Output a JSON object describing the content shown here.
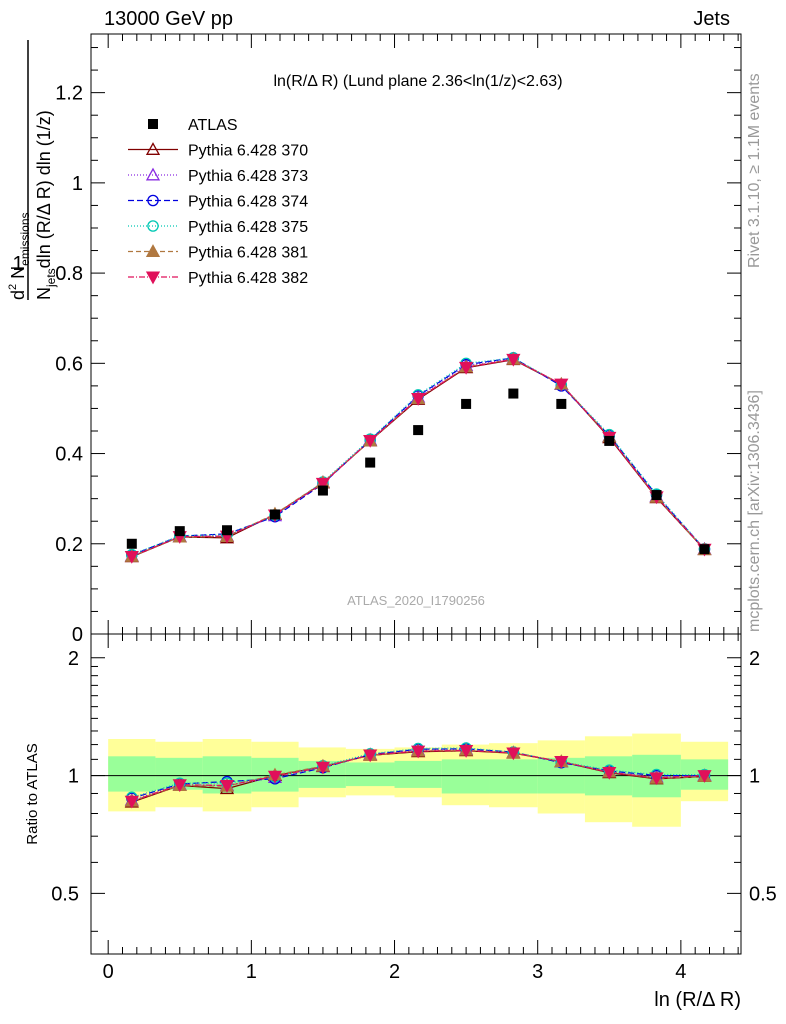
{
  "header": {
    "left": "13000 GeV pp",
    "right": "Jets"
  },
  "side_labels": {
    "rivet": "Rivet 3.1.10, ≥ 1.1M events",
    "mcplots": "mcplots.cern.ch [arXiv:1306.3436]"
  },
  "watermark": "ATLAS_2020_I1790256",
  "chart_data": {
    "type": "scatter",
    "title": "ln(R/Δ R) (Lund plane 2.36<ln(1/z)<2.63)",
    "xlabel": "ln (R/Δ R)",
    "ylabel": "1/N_jets d²N_emissions / dln(R/Δ R) dln(1/z)",
    "ratio_ylabel": "Ratio to ATLAS",
    "xlim": [
      -0.12,
      4.42
    ],
    "ylim": [
      0,
      1.33
    ],
    "ratio_ylim": [
      0.35,
      2.3
    ],
    "ratio_log": true,
    "xticks": [
      0,
      1,
      2,
      3,
      4
    ],
    "yticks": [
      0,
      0.2,
      0.4,
      0.6,
      0.8,
      1,
      1.2
    ],
    "ytick_labels": [
      "0",
      "0.2",
      "0.4",
      "0.6",
      "0.8",
      "1",
      "1.2"
    ],
    "ratio_yticks": [
      0.5,
      1,
      2
    ],
    "ratio_ytick_labels": [
      "0.5",
      "1",
      "2"
    ],
    "legend_position": "top-left",
    "x": [
      0.165,
      0.5,
      0.83,
      1.165,
      1.5,
      1.83,
      2.165,
      2.5,
      2.83,
      3.165,
      3.5,
      3.83,
      4.165
    ],
    "bin_edges": [
      0,
      0.33,
      0.66,
      1.0,
      1.33,
      1.66,
      2.0,
      2.33,
      2.66,
      3.0,
      3.33,
      3.66,
      4.0,
      4.33
    ],
    "data": {
      "name": "ATLAS",
      "values": [
        0.2,
        0.228,
        0.23,
        0.265,
        0.318,
        0.38,
        0.452,
        0.51,
        0.533,
        0.51,
        0.428,
        0.308,
        0.188
      ],
      "band_green": [
        [
          0.91,
          1.12
        ],
        [
          0.92,
          1.11
        ],
        [
          0.9,
          1.12
        ],
        [
          0.91,
          1.11
        ],
        [
          0.93,
          1.09
        ],
        [
          0.94,
          1.08
        ],
        [
          0.93,
          1.09
        ],
        [
          0.9,
          1.1
        ],
        [
          0.9,
          1.1
        ],
        [
          0.9,
          1.11
        ],
        [
          0.89,
          1.12
        ],
        [
          0.88,
          1.13
        ],
        [
          0.92,
          1.1
        ]
      ],
      "band_yellow": [
        [
          0.81,
          1.24
        ],
        [
          0.83,
          1.22
        ],
        [
          0.81,
          1.24
        ],
        [
          0.83,
          1.22
        ],
        [
          0.88,
          1.18
        ],
        [
          0.89,
          1.17
        ],
        [
          0.88,
          1.18
        ],
        [
          0.84,
          1.2
        ],
        [
          0.83,
          1.21
        ],
        [
          0.8,
          1.23
        ],
        [
          0.76,
          1.26
        ],
        [
          0.74,
          1.28
        ],
        [
          0.86,
          1.22
        ]
      ]
    },
    "series": [
      {
        "name": "Pythia 6.428 370",
        "color": "#800000",
        "marker": "triangle-open",
        "dash": "",
        "values": [
          0.171,
          0.215,
          0.213,
          0.265,
          0.335,
          0.428,
          0.52,
          0.59,
          0.608,
          0.553,
          0.435,
          0.302,
          0.187
        ]
      },
      {
        "name": "Pythia 6.428 373",
        "color": "#8a2be2",
        "marker": "triangle-open",
        "dash": "1,2",
        "values": [
          0.173,
          0.216,
          0.217,
          0.262,
          0.336,
          0.43,
          0.525,
          0.595,
          0.61,
          0.553,
          0.438,
          0.305,
          0.188
        ]
      },
      {
        "name": "Pythia 6.428 374",
        "color": "#0000e0",
        "marker": "circle-open",
        "dash": "6,3",
        "values": [
          0.175,
          0.217,
          0.222,
          0.26,
          0.333,
          0.43,
          0.528,
          0.597,
          0.612,
          0.55,
          0.44,
          0.308,
          0.188
        ]
      },
      {
        "name": "Pythia 6.428 375",
        "color": "#00c8b4",
        "marker": "circle-open",
        "dash": "1,2",
        "values": [
          0.176,
          0.218,
          0.22,
          0.263,
          0.337,
          0.432,
          0.53,
          0.6,
          0.612,
          0.553,
          0.442,
          0.31,
          0.189
        ]
      },
      {
        "name": "Pythia 6.428 381",
        "color": "#b07840",
        "marker": "triangle-filled",
        "dash": "5,3",
        "values": [
          0.172,
          0.215,
          0.216,
          0.266,
          0.336,
          0.428,
          0.522,
          0.592,
          0.609,
          0.554,
          0.437,
          0.303,
          0.187
        ]
      },
      {
        "name": "Pythia 6.428 382",
        "color": "#e0105a",
        "marker": "triangle-down-filled",
        "dash": "6,2,1,2",
        "values": [
          0.172,
          0.216,
          0.217,
          0.264,
          0.334,
          0.429,
          0.522,
          0.591,
          0.609,
          0.554,
          0.436,
          0.304,
          0.188
        ]
      }
    ]
  }
}
